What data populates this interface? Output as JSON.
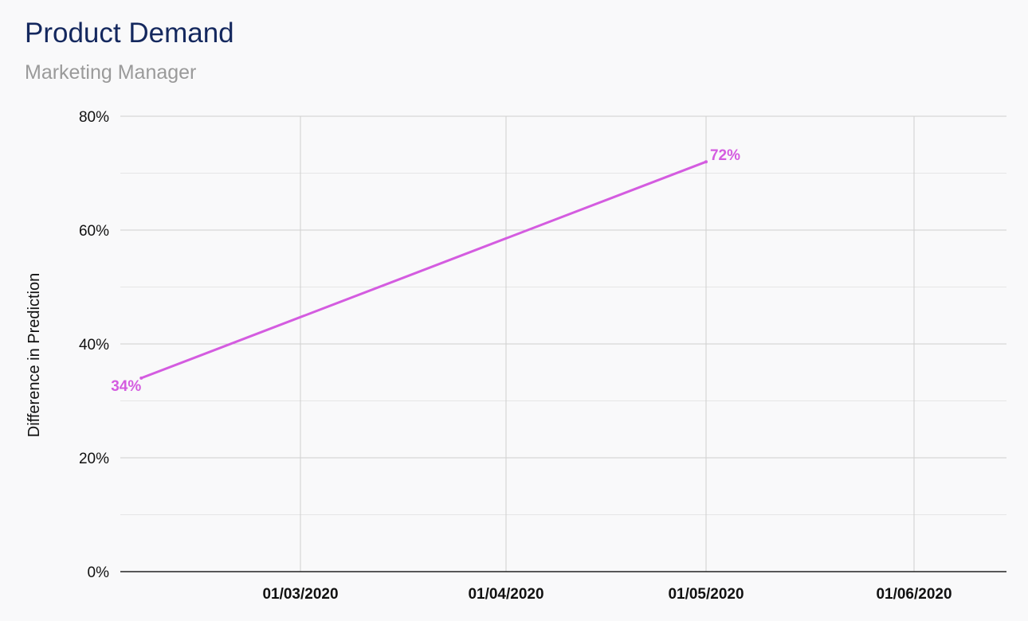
{
  "chart_data": {
    "type": "line",
    "title": "Product Demand",
    "subtitle": "Marketing Manager",
    "xlabel": "",
    "ylabel": "Difference in Prediction",
    "x_ticks": [
      "01/03/2020",
      "01/04/2020",
      "01/05/2020",
      "01/06/2020"
    ],
    "y_ticks": [
      "0%",
      "20%",
      "40%",
      "60%",
      "80%"
    ],
    "ylim": [
      0,
      80
    ],
    "grid": true,
    "series": [
      {
        "color": "#d45ce0",
        "points": [
          {
            "x": "2020-02-06",
            "y": 34,
            "label": "34%"
          },
          {
            "x": "2020-05-01",
            "y": 72,
            "label": "72%"
          }
        ]
      }
    ]
  }
}
